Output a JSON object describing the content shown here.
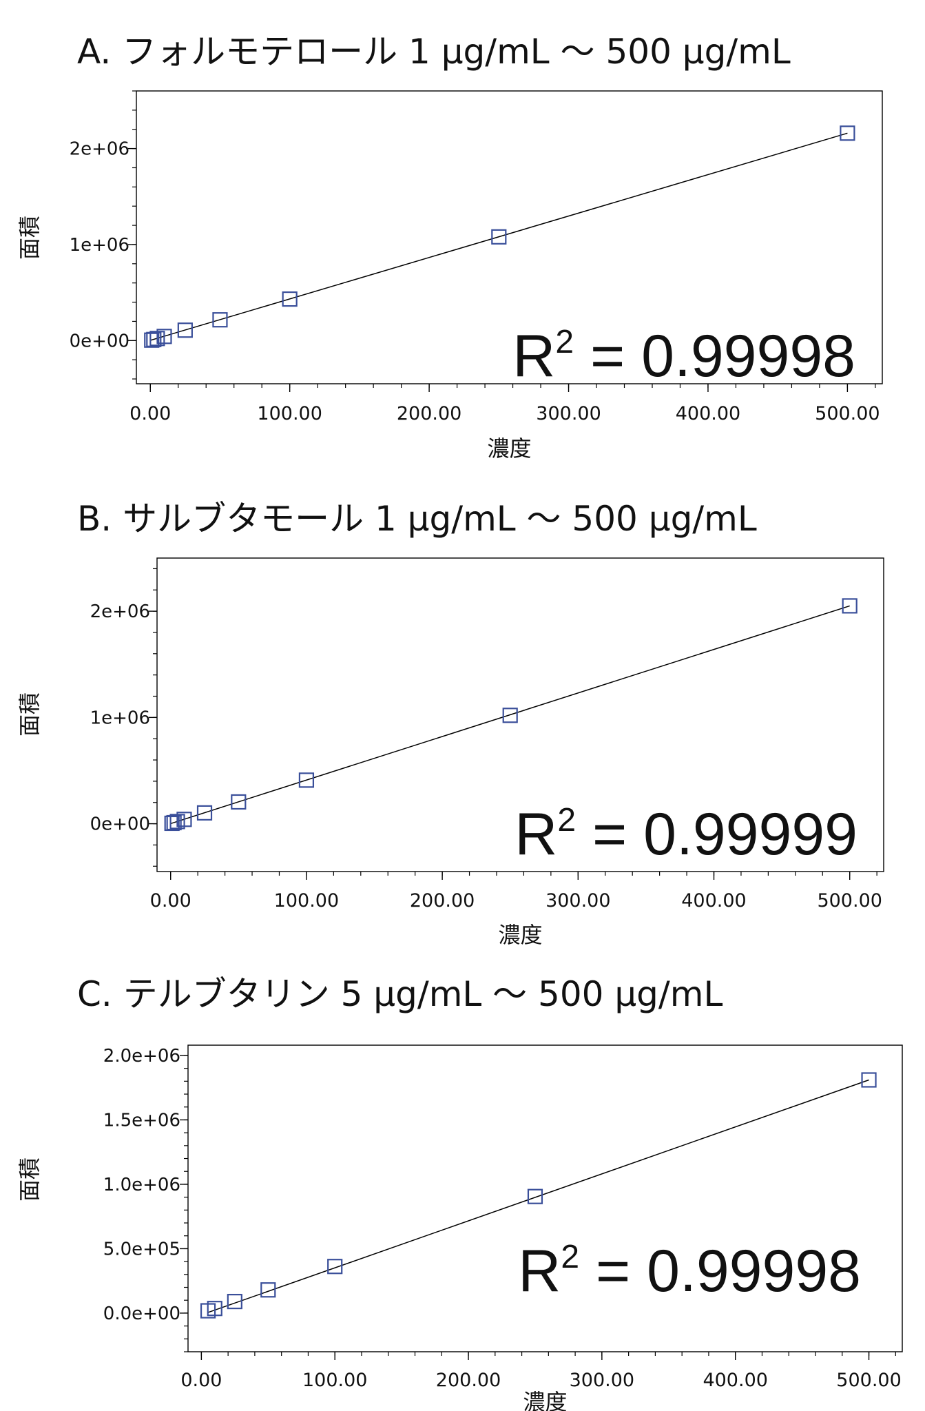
{
  "chart_data": [
    {
      "type": "scatter",
      "title": "A. フォルモテロール 1 μg/mL ～ 500 μg/mL",
      "xlabel": "濃度",
      "ylabel": "面積",
      "xlim": [
        -10,
        525
      ],
      "ylim": [
        -450000,
        2600000
      ],
      "xticks": [
        0,
        100,
        200,
        300,
        400,
        500
      ],
      "xtick_labels": [
        "0.00",
        "100.00",
        "200.00",
        "300.00",
        "400.00",
        "500.00"
      ],
      "yticks": [
        0,
        1000000,
        2000000
      ],
      "ytick_labels": [
        "0e+00",
        "1e+06",
        "2e+06"
      ],
      "y_minor_step": 200000,
      "x_minor_step": 20,
      "annotation": {
        "base": "R",
        "sup": "2",
        "text": "= 0.99998"
      },
      "fit": {
        "x": [
          0,
          500
        ],
        "y": [
          2000,
          2160000
        ]
      },
      "points": {
        "x": [
          1,
          2.5,
          5,
          10,
          25,
          50,
          100,
          250,
          500
        ],
        "y": [
          4300,
          10800,
          21600,
          43000,
          108000,
          216000,
          432000,
          1080000,
          2160000
        ]
      },
      "grid": false,
      "marker": "open-square",
      "marker_color": "#3a4f9a"
    },
    {
      "type": "scatter",
      "title": "B. サルブタモール 1 μg/mL ～ 500 μg/mL",
      "xlabel": "濃度",
      "ylabel": "面積",
      "xlim": [
        -10,
        525
      ],
      "ylim": [
        -450000,
        2500000
      ],
      "xticks": [
        0,
        100,
        200,
        300,
        400,
        500
      ],
      "xtick_labels": [
        "0.00",
        "100.00",
        "200.00",
        "300.00",
        "400.00",
        "500.00"
      ],
      "yticks": [
        0,
        1000000,
        2000000
      ],
      "ytick_labels": [
        "0e+00",
        "1e+06",
        "2e+06"
      ],
      "y_minor_step": 200000,
      "x_minor_step": 20,
      "annotation": {
        "base": "R",
        "sup": "2",
        "text": "= 0.99999"
      },
      "fit": {
        "x": [
          0,
          500
        ],
        "y": [
          1000,
          2050000
        ]
      },
      "points": {
        "x": [
          1,
          2.5,
          5,
          10,
          25,
          50,
          100,
          250,
          500
        ],
        "y": [
          4100,
          10200,
          20500,
          41000,
          102000,
          205000,
          410000,
          1020000,
          2050000
        ]
      },
      "grid": false,
      "marker": "open-square",
      "marker_color": "#3a4f9a"
    },
    {
      "type": "scatter",
      "title": "C. テルブタリン 5 μg/mL ～ 500 μg/mL",
      "xlabel": "濃度",
      "ylabel": "面積",
      "xlim": [
        -10,
        525
      ],
      "ylim": [
        -300000,
        2080000
      ],
      "xticks": [
        0,
        100,
        200,
        300,
        400,
        500
      ],
      "xtick_labels": [
        "0.00",
        "100.00",
        "200.00",
        "300.00",
        "400.00",
        "500.00"
      ],
      "yticks": [
        0,
        500000,
        1000000,
        1500000,
        2000000
      ],
      "ytick_labels": [
        "0.0e+00",
        "5.0e+05",
        "1.0e+06",
        "1.5e+06",
        "2.0e+06"
      ],
      "y_minor_step": 100000,
      "x_minor_step": 20,
      "annotation": {
        "base": "R",
        "sup": "2",
        "text": "= 0.99998"
      },
      "fit": {
        "x": [
          5,
          500
        ],
        "y": [
          5000,
          1810000
        ]
      },
      "points": {
        "x": [
          5,
          10,
          25,
          50,
          100,
          250,
          500
        ],
        "y": [
          18000,
          36000,
          90000,
          180000,
          362000,
          905000,
          1810000
        ]
      },
      "grid": false,
      "marker": "open-square",
      "marker_color": "#3a4f9a"
    }
  ]
}
